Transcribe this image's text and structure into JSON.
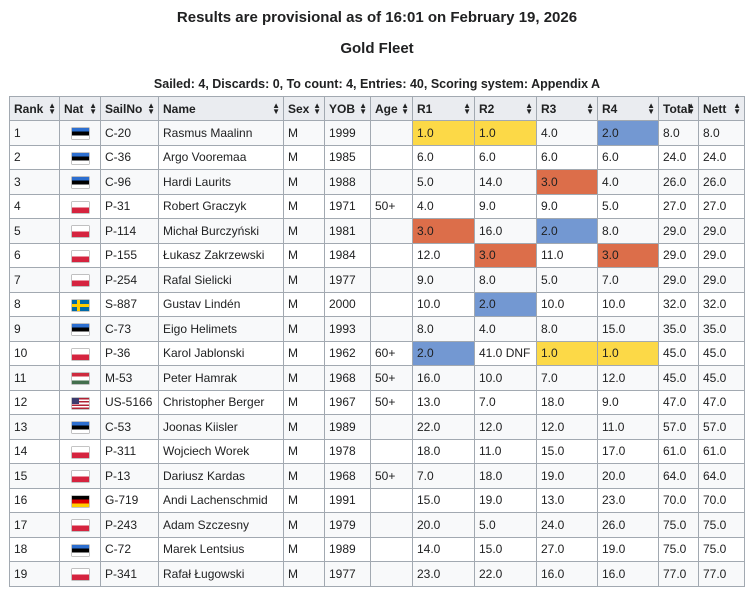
{
  "title": "Results are provisional as of 16:01 on February 19, 2026",
  "subtitle": "Gold Fleet",
  "summary": "Sailed: 4, Discards: 0, To count: 4, Entries: 40, Scoring system: Appendix A",
  "colors": {
    "header_bg": "#eaecf0",
    "border": "#a2a9b1",
    "gold": "#fcd947",
    "blue": "#7398d2",
    "orange": "#dc6e4a"
  },
  "columns": [
    "Rank",
    "Nat",
    "SailNo",
    "Name",
    "Sex",
    "YOB",
    "Age",
    "R1",
    "R2",
    "R3",
    "R4",
    "Total",
    "Nett"
  ],
  "sort_icon": "sort-updown-icon",
  "rows": [
    {
      "rank": "1",
      "nat": "EST",
      "sail": "C-20",
      "name": "Rasmus Maalinn",
      "sex": "M",
      "yob": "1999",
      "age": "",
      "r1": "1.0",
      "r2": "1.0",
      "r3": "4.0",
      "r4": "2.0",
      "total": "8.0",
      "nett": "8.0",
      "hl": {
        "r1": "gold",
        "r2": "gold",
        "r4": "blue"
      }
    },
    {
      "rank": "2",
      "nat": "EST",
      "sail": "C-36",
      "name": "Argo Vooremaa",
      "sex": "M",
      "yob": "1985",
      "age": "",
      "r1": "6.0",
      "r2": "6.0",
      "r3": "6.0",
      "r4": "6.0",
      "total": "24.0",
      "nett": "24.0",
      "hl": {}
    },
    {
      "rank": "3",
      "nat": "EST",
      "sail": "C-96",
      "name": "Hardi Laurits",
      "sex": "M",
      "yob": "1988",
      "age": "",
      "r1": "5.0",
      "r2": "14.0",
      "r3": "3.0",
      "r4": "4.0",
      "total": "26.0",
      "nett": "26.0",
      "hl": {
        "r3": "orange"
      }
    },
    {
      "rank": "4",
      "nat": "POL",
      "sail": "P-31",
      "name": "Robert Graczyk",
      "sex": "M",
      "yob": "1971",
      "age": "50+",
      "r1": "4.0",
      "r2": "9.0",
      "r3": "9.0",
      "r4": "5.0",
      "total": "27.0",
      "nett": "27.0",
      "hl": {}
    },
    {
      "rank": "5",
      "nat": "POL",
      "sail": "P-114",
      "name": "Michał Burczyński",
      "sex": "M",
      "yob": "1981",
      "age": "",
      "r1": "3.0",
      "r2": "16.0",
      "r3": "2.0",
      "r4": "8.0",
      "total": "29.0",
      "nett": "29.0",
      "hl": {
        "r1": "orange",
        "r3": "blue"
      }
    },
    {
      "rank": "6",
      "nat": "POL",
      "sail": "P-155",
      "name": "Łukasz Zakrzewski",
      "sex": "M",
      "yob": "1984",
      "age": "",
      "r1": "12.0",
      "r2": "3.0",
      "r3": "11.0",
      "r4": "3.0",
      "total": "29.0",
      "nett": "29.0",
      "hl": {
        "r2": "orange",
        "r4": "orange"
      }
    },
    {
      "rank": "7",
      "nat": "POL",
      "sail": "P-254",
      "name": "Rafal Sielicki",
      "sex": "M",
      "yob": "1977",
      "age": "",
      "r1": "9.0",
      "r2": "8.0",
      "r3": "5.0",
      "r4": "7.0",
      "total": "29.0",
      "nett": "29.0",
      "hl": {}
    },
    {
      "rank": "8",
      "nat": "SWE",
      "sail": "S-887",
      "name": "Gustav Lindén",
      "sex": "M",
      "yob": "2000",
      "age": "",
      "r1": "10.0",
      "r2": "2.0",
      "r3": "10.0",
      "r4": "10.0",
      "total": "32.0",
      "nett": "32.0",
      "hl": {
        "r2": "blue"
      }
    },
    {
      "rank": "9",
      "nat": "EST",
      "sail": "C-73",
      "name": "Eigo Helimets",
      "sex": "M",
      "yob": "1993",
      "age": "",
      "r1": "8.0",
      "r2": "4.0",
      "r3": "8.0",
      "r4": "15.0",
      "total": "35.0",
      "nett": "35.0",
      "hl": {}
    },
    {
      "rank": "10",
      "nat": "POL",
      "sail": "P-36",
      "name": "Karol Jablonski",
      "sex": "M",
      "yob": "1962",
      "age": "60+",
      "r1": "2.0",
      "r2": "41.0 DNF",
      "r3": "1.0",
      "r4": "1.0",
      "total": "45.0",
      "nett": "45.0",
      "hl": {
        "r1": "blue",
        "r3": "gold",
        "r4": "gold"
      }
    },
    {
      "rank": "11",
      "nat": "HUN",
      "sail": "M-53",
      "name": "Peter Hamrak",
      "sex": "M",
      "yob": "1968",
      "age": "50+",
      "r1": "16.0",
      "r2": "10.0",
      "r3": "7.0",
      "r4": "12.0",
      "total": "45.0",
      "nett": "45.0",
      "hl": {}
    },
    {
      "rank": "12",
      "nat": "USA",
      "sail": "US-5166",
      "name": "Christopher Berger",
      "sex": "M",
      "yob": "1967",
      "age": "50+",
      "r1": "13.0",
      "r2": "7.0",
      "r3": "18.0",
      "r4": "9.0",
      "total": "47.0",
      "nett": "47.0",
      "hl": {}
    },
    {
      "rank": "13",
      "nat": "EST",
      "sail": "C-53",
      "name": "Joonas Kiisler",
      "sex": "M",
      "yob": "1989",
      "age": "",
      "r1": "22.0",
      "r2": "12.0",
      "r3": "12.0",
      "r4": "11.0",
      "total": "57.0",
      "nett": "57.0",
      "hl": {}
    },
    {
      "rank": "14",
      "nat": "POL",
      "sail": "P-311",
      "name": "Wojciech Worek",
      "sex": "M",
      "yob": "1978",
      "age": "",
      "r1": "18.0",
      "r2": "11.0",
      "r3": "15.0",
      "r4": "17.0",
      "total": "61.0",
      "nett": "61.0",
      "hl": {}
    },
    {
      "rank": "15",
      "nat": "POL",
      "sail": "P-13",
      "name": "Dariusz Kardas",
      "sex": "M",
      "yob": "1968",
      "age": "50+",
      "r1": "7.0",
      "r2": "18.0",
      "r3": "19.0",
      "r4": "20.0",
      "total": "64.0",
      "nett": "64.0",
      "hl": {}
    },
    {
      "rank": "16",
      "nat": "GER",
      "sail": "G-719",
      "name": "Andi Lachenschmid",
      "sex": "M",
      "yob": "1991",
      "age": "",
      "r1": "15.0",
      "r2": "19.0",
      "r3": "13.0",
      "r4": "23.0",
      "total": "70.0",
      "nett": "70.0",
      "hl": {}
    },
    {
      "rank": "17",
      "nat": "POL",
      "sail": "P-243",
      "name": "Adam Szczesny",
      "sex": "M",
      "yob": "1979",
      "age": "",
      "r1": "20.0",
      "r2": "5.0",
      "r3": "24.0",
      "r4": "26.0",
      "total": "75.0",
      "nett": "75.0",
      "hl": {}
    },
    {
      "rank": "18",
      "nat": "EST",
      "sail": "C-72",
      "name": "Marek Lentsius",
      "sex": "M",
      "yob": "1989",
      "age": "",
      "r1": "14.0",
      "r2": "15.0",
      "r3": "27.0",
      "r4": "19.0",
      "total": "75.0",
      "nett": "75.0",
      "hl": {}
    },
    {
      "rank": "19",
      "nat": "POL",
      "sail": "P-341",
      "name": "Rafał Ługowski",
      "sex": "M",
      "yob": "1977",
      "age": "",
      "r1": "23.0",
      "r2": "22.0",
      "r3": "16.0",
      "r4": "16.0",
      "total": "77.0",
      "nett": "77.0",
      "hl": {}
    }
  ]
}
